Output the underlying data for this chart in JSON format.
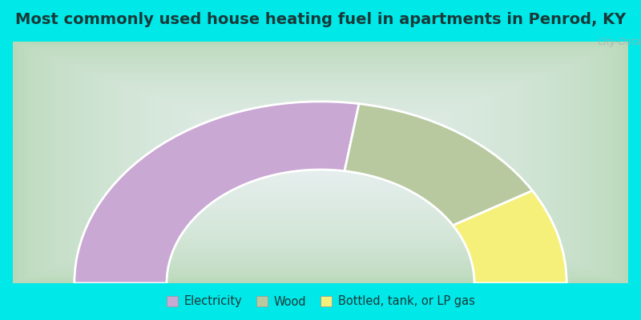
{
  "title": "Most commonly used house heating fuel in apartments in Penrod, KY",
  "segments": [
    {
      "label": "Electricity",
      "value": 55,
      "color": "#c9a8d4"
    },
    {
      "label": "Wood",
      "value": 28,
      "color": "#b8c9a0"
    },
    {
      "label": "Bottled, tank, or LP gas",
      "value": 17,
      "color": "#f5f07a"
    }
  ],
  "cyan_color": "#00e8e8",
  "bg_color_corner": "#b8d8b8",
  "bg_color_center": "#e8f0f8",
  "title_fontsize": 14,
  "legend_fontsize": 10.5,
  "watermark": "City-Data.com",
  "R_outer": 0.88,
  "R_inner": 0.55,
  "title_color": "#1a3a3a"
}
